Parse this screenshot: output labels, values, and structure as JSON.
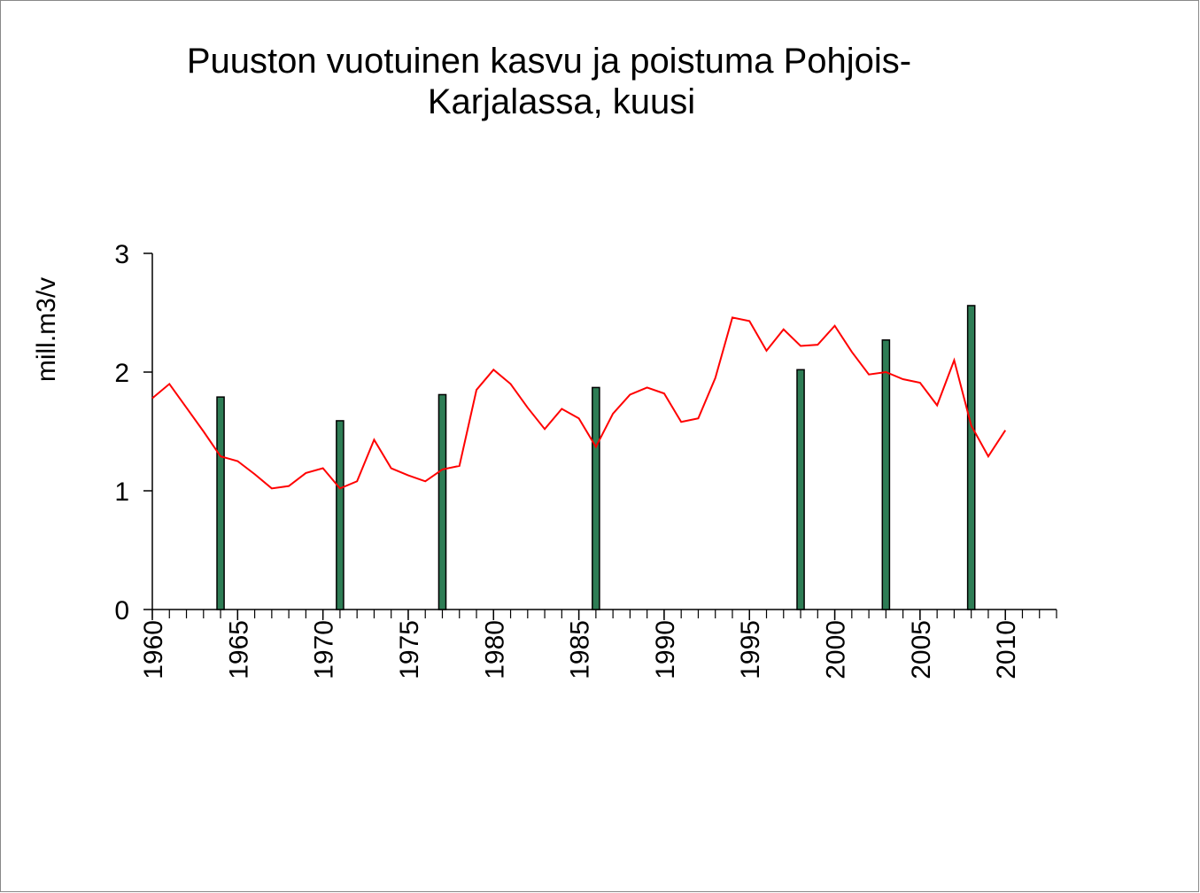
{
  "chart_data": {
    "type": "combo",
    "title": [
      "Puuston vuotuinen kasvu ja poistuma Pohjois-",
      "Karjalassa, kuusi"
    ],
    "y_label": "mill.m3/v",
    "xlim": [
      1960,
      2013
    ],
    "xticks": [
      1960,
      1965,
      1970,
      1975,
      1980,
      1985,
      1990,
      1995,
      2000,
      2005,
      2010
    ],
    "xminorticks": [
      1960,
      1961,
      1962,
      1963,
      1964,
      1965,
      1966,
      1967,
      1968,
      1969,
      1970,
      1971,
      1972,
      1973,
      1974,
      1975,
      1976,
      1977,
      1978,
      1979,
      1980,
      1981,
      1982,
      1983,
      1984,
      1985,
      1986,
      1987,
      1988,
      1989,
      1990,
      1991,
      1992,
      1993,
      1994,
      1995,
      1996,
      1997,
      1998,
      1999,
      2000,
      2001,
      2002,
      2003,
      2004,
      2005,
      2006,
      2007,
      2008,
      2009,
      2010,
      2011,
      2012,
      2013
    ],
    "ylim": [
      0,
      3
    ],
    "yticks": [
      0,
      1,
      2,
      3
    ],
    "series": [
      {
        "type": "bar",
        "color": "#2e7d55",
        "x": [
          1964,
          1971,
          1977,
          1986,
          1998,
          2003,
          2008
        ],
        "values": [
          1.79,
          1.59,
          1.81,
          1.87,
          2.02,
          2.27,
          2.56
        ]
      },
      {
        "type": "line",
        "color": "#ff0000",
        "x": [
          1960,
          1961,
          1962,
          1963,
          1964,
          1965,
          1966,
          1967,
          1968,
          1969,
          1970,
          1971,
          1972,
          1973,
          1974,
          1975,
          1976,
          1977,
          1978,
          1979,
          1980,
          1981,
          1982,
          1983,
          1984,
          1985,
          1986,
          1987,
          1988,
          1989,
          1990,
          1991,
          1992,
          1993,
          1994,
          1995,
          1996,
          1997,
          1998,
          1999,
          2000,
          2001,
          2002,
          2003,
          2004,
          2005,
          2006,
          2007,
          2008,
          2009,
          2010
        ],
        "values": [
          1.78,
          1.9,
          1.7,
          1.5,
          1.29,
          1.25,
          1.14,
          1.02,
          1.04,
          1.15,
          1.19,
          1.02,
          1.08,
          1.43,
          1.19,
          1.13,
          1.08,
          1.18,
          1.21,
          1.85,
          2.02,
          1.9,
          1.7,
          1.52,
          1.69,
          1.61,
          1.37,
          1.65,
          1.81,
          1.87,
          1.82,
          1.58,
          1.61,
          1.95,
          2.46,
          2.43,
          2.18,
          2.36,
          2.22,
          2.23,
          2.39,
          2.17,
          1.98,
          2.0,
          1.94,
          1.91,
          1.72,
          2.1,
          1.55,
          1.29,
          1.51
        ]
      }
    ]
  }
}
